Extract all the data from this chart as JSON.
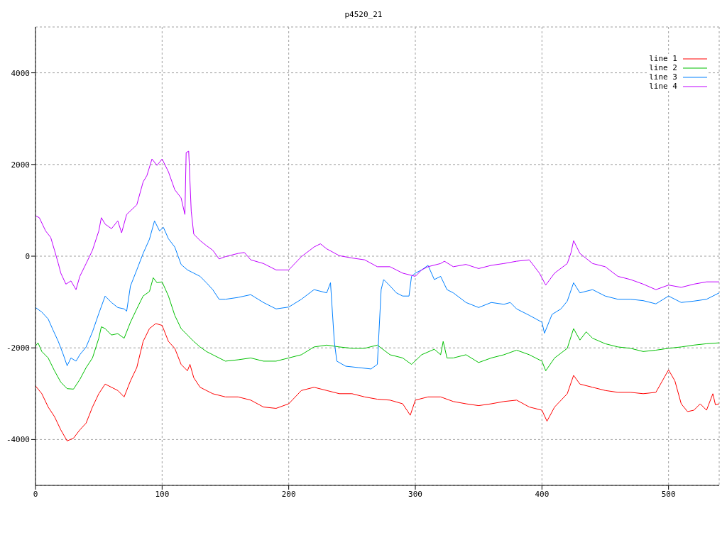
{
  "chart_data": {
    "type": "line",
    "title": "p4520_21",
    "xlim": [
      0,
      540
    ],
    "xticks": [
      0,
      100,
      200,
      300,
      400,
      500
    ],
    "ylim": [
      -5000,
      5000
    ],
    "yticks": [
      -4000,
      -2000,
      0,
      2000,
      4000
    ],
    "grid": true,
    "legend": "top right",
    "marker": "none",
    "line_style": "solid",
    "series": [
      {
        "name": "line 1",
        "color": "#ff0000",
        "x": [
          0,
          5,
          10,
          15,
          20,
          25,
          30,
          35,
          40,
          45,
          50,
          55,
          60,
          65,
          70,
          75,
          80,
          85,
          90,
          95,
          100,
          105,
          110,
          115,
          120,
          122,
          125,
          130,
          140,
          150,
          160,
          170,
          180,
          190,
          200,
          210,
          220,
          230,
          240,
          250,
          260,
          270,
          280,
          290,
          296,
          300,
          310,
          320,
          330,
          340,
          350,
          360,
          370,
          380,
          390,
          400,
          404,
          410,
          420,
          425,
          430,
          440,
          450,
          460,
          470,
          480,
          490,
          500,
          505,
          510,
          515,
          520,
          525,
          530,
          535,
          537,
          540
        ],
        "values": [
          -2830,
          -3000,
          -3290,
          -3500,
          -3790,
          -4030,
          -3970,
          -3790,
          -3640,
          -3290,
          -3000,
          -2790,
          -2860,
          -2930,
          -3070,
          -2720,
          -2430,
          -1860,
          -1580,
          -1470,
          -1510,
          -1860,
          -2010,
          -2360,
          -2500,
          -2360,
          -2650,
          -2860,
          -3000,
          -3070,
          -3070,
          -3140,
          -3290,
          -3320,
          -3220,
          -2930,
          -2860,
          -2930,
          -3000,
          -3000,
          -3070,
          -3120,
          -3140,
          -3220,
          -3470,
          -3140,
          -3070,
          -3070,
          -3170,
          -3220,
          -3260,
          -3220,
          -3170,
          -3140,
          -3290,
          -3360,
          -3600,
          -3290,
          -3000,
          -2600,
          -2790,
          -2860,
          -2930,
          -2970,
          -2970,
          -3000,
          -2970,
          -2480,
          -2720,
          -3220,
          -3390,
          -3360,
          -3220,
          -3360,
          -3000,
          -3240,
          -3220
        ]
      },
      {
        "name": "line 2",
        "color": "#00c000",
        "x": [
          0,
          2,
          5,
          10,
          15,
          20,
          25,
          30,
          35,
          40,
          45,
          50,
          52,
          55,
          60,
          65,
          70,
          75,
          80,
          85,
          90,
          93,
          96,
          100,
          105,
          110,
          115,
          120,
          125,
          130,
          135,
          140,
          150,
          160,
          170,
          180,
          190,
          200,
          210,
          220,
          230,
          240,
          250,
          260,
          270,
          280,
          290,
          297,
          305,
          315,
          320,
          322,
          325,
          330,
          340,
          350,
          360,
          370,
          380,
          390,
          400,
          403,
          410,
          420,
          425,
          430,
          435,
          440,
          450,
          460,
          470,
          480,
          490,
          500,
          510,
          520,
          530,
          540
        ],
        "values": [
          -1960,
          -1890,
          -2080,
          -2220,
          -2500,
          -2750,
          -2890,
          -2900,
          -2690,
          -2430,
          -2220,
          -1790,
          -1540,
          -1580,
          -1720,
          -1690,
          -1790,
          -1440,
          -1150,
          -870,
          -770,
          -470,
          -580,
          -560,
          -870,
          -1290,
          -1580,
          -1720,
          -1860,
          -1980,
          -2080,
          -2150,
          -2290,
          -2260,
          -2220,
          -2290,
          -2290,
          -2220,
          -2150,
          -1980,
          -1940,
          -1980,
          -2010,
          -2010,
          -1940,
          -2150,
          -2220,
          -2360,
          -2150,
          -2030,
          -2150,
          -1860,
          -2220,
          -2220,
          -2150,
          -2320,
          -2220,
          -2150,
          -2050,
          -2150,
          -2290,
          -2500,
          -2220,
          -2010,
          -1580,
          -1830,
          -1650,
          -1790,
          -1910,
          -1980,
          -2010,
          -2080,
          -2050,
          -2010,
          -1980,
          -1940,
          -1910,
          -1890
        ]
      },
      {
        "name": "line 3",
        "color": "#0080ff",
        "x": [
          0,
          5,
          10,
          14,
          18,
          22,
          25,
          28,
          32,
          35,
          40,
          45,
          50,
          55,
          60,
          65,
          70,
          72,
          75,
          80,
          85,
          90,
          94,
          98,
          101,
          105,
          110,
          115,
          120,
          125,
          130,
          135,
          140,
          145,
          150,
          160,
          170,
          180,
          190,
          200,
          210,
          220,
          230,
          233,
          236,
          238,
          245,
          255,
          265,
          270,
          273,
          275,
          280,
          285,
          290,
          295,
          297,
          300,
          305,
          310,
          315,
          320,
          325,
          330,
          340,
          350,
          360,
          370,
          375,
          380,
          390,
          400,
          402,
          408,
          415,
          420,
          425,
          430,
          440,
          450,
          460,
          470,
          480,
          490,
          500,
          510,
          520,
          530,
          540
        ],
        "values": [
          -1120,
          -1220,
          -1370,
          -1620,
          -1860,
          -2150,
          -2390,
          -2220,
          -2290,
          -2150,
          -1980,
          -1650,
          -1250,
          -870,
          -1010,
          -1120,
          -1150,
          -1200,
          -650,
          -300,
          60,
          370,
          770,
          550,
          630,
          380,
          200,
          -180,
          -300,
          -370,
          -440,
          -580,
          -730,
          -940,
          -940,
          -900,
          -840,
          -1010,
          -1150,
          -1110,
          -940,
          -730,
          -800,
          -580,
          -1860,
          -2290,
          -2400,
          -2430,
          -2460,
          -2360,
          -730,
          -510,
          -650,
          -800,
          -870,
          -870,
          -440,
          -370,
          -300,
          -200,
          -510,
          -440,
          -730,
          -800,
          -1010,
          -1120,
          -1010,
          -1050,
          -1010,
          -1150,
          -1290,
          -1440,
          -1680,
          -1270,
          -1150,
          -980,
          -580,
          -800,
          -730,
          -870,
          -940,
          -940,
          -970,
          -1040,
          -870,
          -1010,
          -980,
          -940,
          -800
        ]
      },
      {
        "name": "line 4",
        "color": "#c000ff",
        "x": [
          0,
          3,
          8,
          12,
          15,
          18,
          20,
          24,
          28,
          32,
          35,
          40,
          45,
          50,
          52,
          55,
          60,
          65,
          68,
          72,
          80,
          85,
          88,
          92,
          96,
          100,
          105,
          110,
          115,
          118,
          119,
          121,
          123,
          125,
          130,
          135,
          140,
          145,
          150,
          160,
          165,
          170,
          180,
          190,
          200,
          210,
          220,
          225,
          230,
          240,
          250,
          260,
          270,
          280,
          290,
          300,
          305,
          310,
          320,
          323,
          330,
          340,
          350,
          360,
          370,
          380,
          390,
          398,
          403,
          410,
          420,
          423,
          425,
          430,
          440,
          450,
          460,
          470,
          480,
          490,
          500,
          510,
          520,
          530,
          540
        ],
        "values": [
          880,
          840,
          550,
          410,
          130,
          -160,
          -370,
          -610,
          -540,
          -730,
          -440,
          -160,
          130,
          550,
          840,
          700,
          600,
          770,
          510,
          910,
          1120,
          1620,
          1760,
          2120,
          1980,
          2120,
          1840,
          1450,
          1270,
          910,
          2260,
          2290,
          980,
          480,
          340,
          230,
          130,
          -60,
          -10,
          60,
          80,
          -80,
          -160,
          -300,
          -300,
          -10,
          200,
          270,
          160,
          10,
          -40,
          -80,
          -230,
          -230,
          -370,
          -440,
          -300,
          -230,
          -160,
          -110,
          -230,
          -180,
          -270,
          -200,
          -160,
          -110,
          -80,
          -370,
          -630,
          -370,
          -160,
          80,
          340,
          60,
          -160,
          -230,
          -440,
          -510,
          -610,
          -730,
          -630,
          -680,
          -610,
          -560,
          -560
        ]
      }
    ]
  }
}
